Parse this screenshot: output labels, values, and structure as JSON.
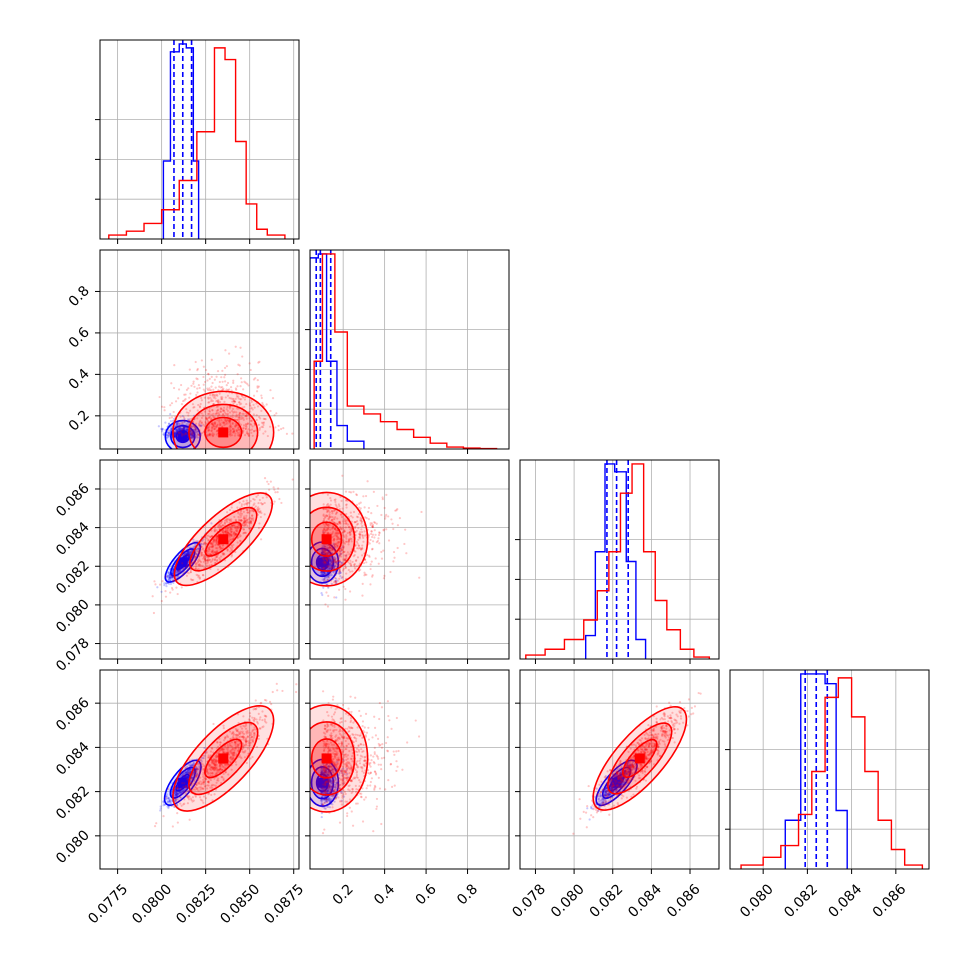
{
  "chart_data": {
    "type": "corner",
    "n_params": 4,
    "colors": {
      "blue": "#0000ff",
      "red": "#ff0000",
      "grid": "#b0b0b0"
    },
    "axes": [
      {
        "range": [
          0.0765,
          0.0878
        ],
        "ticks": [
          "0.0775",
          "0.0800",
          "0.0825",
          "0.0850",
          "0.0875"
        ]
      },
      {
        "range": [
          0.04,
          1.0
        ],
        "ticks": [
          "0.2",
          "0.4",
          "0.6",
          "0.8"
        ]
      },
      {
        "range": [
          0.0772,
          0.0875
        ],
        "ticks": [
          "0.078",
          "0.080",
          "0.082",
          "0.084",
          "0.086"
        ]
      },
      {
        "range": [
          0.0785,
          0.0875
        ],
        "ticks": [
          "0.080",
          "0.082",
          "0.084",
          "0.086"
        ]
      }
    ],
    "series": [
      {
        "color": "blue",
        "center": [
          0.0812,
          0.1,
          0.0822,
          0.0824
        ],
        "std": [
          0.00045,
          0.035,
          0.00048,
          0.00048
        ],
        "quantiles": [
          [
            0.0807,
            0.0812,
            0.0817
          ],
          [
            0.07,
            0.09,
            0.14
          ],
          [
            0.0817,
            0.0822,
            0.0828
          ],
          [
            0.0819,
            0.0824,
            0.0829
          ]
        ],
        "hist_edges": [
          [
            0.0801,
            0.0805,
            0.081,
            0.0814,
            0.0818,
            0.0821
          ],
          [
            0.04,
            0.08,
            0.12,
            0.17,
            0.22,
            0.3
          ],
          [
            0.0806,
            0.0811,
            0.0816,
            0.0821,
            0.0827,
            0.0832,
            0.0837
          ],
          [
            0.081,
            0.0817,
            0.0822,
            0.0828,
            0.0833,
            0.0838
          ]
        ],
        "hist_values": [
          [
            0.4,
            0.96,
            1.0,
            0.98,
            0.4
          ],
          [
            0.98,
            1.0,
            0.45,
            0.12,
            0.04
          ],
          [
            0.12,
            0.55,
            1.0,
            0.96,
            0.5,
            0.1
          ],
          [
            0.25,
            1.0,
            1.0,
            0.95,
            0.3
          ]
        ]
      },
      {
        "color": "red",
        "center": [
          0.0835,
          0.12,
          0.0834,
          0.0835
        ],
        "std": [
          0.0013,
          0.09,
          0.0011,
          0.0011
        ],
        "quantiles": [],
        "hist_edges": [
          [
            0.077,
            0.078,
            0.079,
            0.08,
            0.081,
            0.082,
            0.083,
            0.0836,
            0.0842,
            0.0848,
            0.0854,
            0.086,
            0.087
          ],
          [
            0.06,
            0.1,
            0.16,
            0.22,
            0.3,
            0.38,
            0.46,
            0.54,
            0.62,
            0.7,
            0.78,
            0.86,
            0.94
          ],
          [
            0.0775,
            0.0785,
            0.0795,
            0.0805,
            0.0812,
            0.0818,
            0.0824,
            0.083,
            0.0836,
            0.0842,
            0.0848,
            0.0855,
            0.0862,
            0.087
          ],
          [
            0.079,
            0.08,
            0.0808,
            0.0816,
            0.0822,
            0.0828,
            0.0834,
            0.084,
            0.0846,
            0.0852,
            0.0858,
            0.0864,
            0.0872
          ]
        ],
        "hist_values": [
          [
            0.02,
            0.04,
            0.08,
            0.15,
            0.3,
            0.55,
            0.98,
            0.92,
            0.5,
            0.18,
            0.05,
            0.02
          ],
          [
            0.45,
            1.0,
            0.6,
            0.22,
            0.18,
            0.14,
            0.1,
            0.06,
            0.03,
            0.01,
            0.005,
            0.002
          ],
          [
            0.02,
            0.05,
            0.1,
            0.2,
            0.35,
            0.55,
            0.85,
            1.0,
            0.55,
            0.3,
            0.15,
            0.05,
            0.01
          ],
          [
            0.02,
            0.06,
            0.12,
            0.28,
            0.5,
            0.88,
            0.98,
            0.78,
            0.5,
            0.25,
            0.1,
            0.02
          ]
        ]
      }
    ],
    "correlations": [
      [
        0,
        1,
        0.0
      ],
      [
        0,
        2,
        0.9
      ],
      [
        0,
        3,
        0.88
      ],
      [
        1,
        2,
        0.1
      ],
      [
        1,
        3,
        0.1
      ],
      [
        2,
        3,
        0.9
      ]
    ],
    "grid": true
  }
}
